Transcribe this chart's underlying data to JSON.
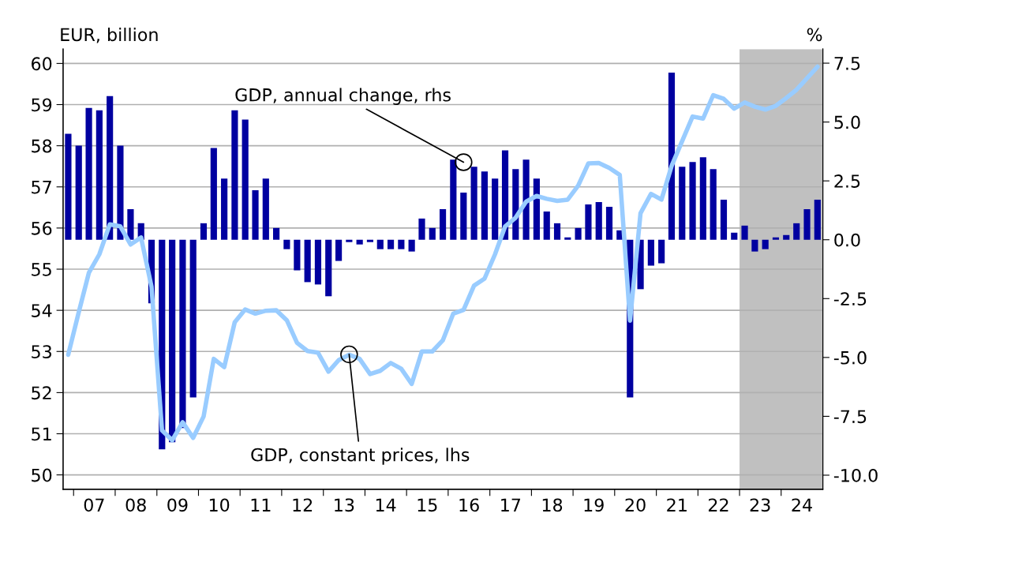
{
  "chart_data": {
    "type": "bar",
    "x": [
      "2006-11-15",
      "2007-02-15",
      "2007-05-15",
      "2007-08-15",
      "2007-11-15",
      "2008-02-15",
      "2008-05-15",
      "2008-08-15",
      "2008-11-15",
      "2009-02-15",
      "2009-05-15",
      "2009-08-15",
      "2009-11-15",
      "2010-02-15",
      "2010-05-15",
      "2010-08-15",
      "2010-11-15",
      "2011-02-15",
      "2011-05-15",
      "2011-08-15",
      "2011-11-15",
      "2012-02-15",
      "2012-05-15",
      "2012-08-15",
      "2012-11-15",
      "2013-02-15",
      "2013-05-15",
      "2013-08-15",
      "2013-11-15",
      "2014-02-15",
      "2014-05-15",
      "2014-08-15",
      "2014-11-15",
      "2015-02-15",
      "2015-05-15",
      "2015-08-15",
      "2015-11-15",
      "2016-02-15",
      "2016-05-15",
      "2016-08-15",
      "2016-11-15",
      "2017-02-15",
      "2017-05-15",
      "2017-08-15",
      "2017-11-15",
      "2018-02-15",
      "2018-05-15",
      "2018-08-15",
      "2018-11-15",
      "2019-02-15",
      "2019-05-15",
      "2019-08-15",
      "2019-11-15",
      "2020-02-15",
      "2020-05-15",
      "2020-08-15",
      "2020-11-15",
      "2021-02-15",
      "2021-05-15",
      "2021-08-15",
      "2021-11-15",
      "2022-02-15",
      "2022-05-15",
      "2022-08-15",
      "2022-11-15",
      "2023-02-15",
      "2023-05-15",
      "2023-08-15",
      "2023-11-15",
      "2024-02-15",
      "2024-05-15",
      "2024-08-15",
      "2024-11-15"
    ],
    "series": [
      {
        "axis": "y2",
        "color": "#0000a0",
        "values": [
          4.5,
          4.0,
          5.6,
          5.5,
          6.1,
          4.0,
          1.3,
          0.7,
          -2.7,
          -8.9,
          -8.6,
          -8.0,
          -6.7,
          0.7,
          3.9,
          2.6,
          5.5,
          5.1,
          2.1,
          2.6,
          0.5,
          -0.4,
          -1.3,
          -1.8,
          -1.9,
          -2.4,
          -0.9,
          -0.1,
          -0.2,
          -0.1,
          -0.4,
          -0.4,
          -0.4,
          -0.5,
          0.9,
          0.5,
          1.3,
          3.4,
          2.0,
          3.1,
          2.9,
          2.6,
          3.8,
          3.0,
          3.4,
          2.6,
          1.2,
          0.7,
          0.1,
          0.5,
          1.5,
          1.6,
          1.4,
          0.4,
          -6.7,
          -2.1,
          -1.1,
          -1.0,
          7.1,
          3.1,
          3.3,
          3.5,
          3.0,
          1.7,
          0.3,
          0.6,
          -0.5,
          -0.4,
          0.1,
          0.2,
          0.7,
          1.3,
          1.7
        ]
      },
      {
        "type": "line",
        "color": "#99ccff",
        "values": [
          52.92,
          53.95,
          54.91,
          55.36,
          56.09,
          56.04,
          55.6,
          55.77,
          54.57,
          51.08,
          50.84,
          51.28,
          50.9,
          51.42,
          52.82,
          52.62,
          53.71,
          54.02,
          53.92,
          53.99,
          54.0,
          53.76,
          53.21,
          53.01,
          52.97,
          52.51,
          52.79,
          52.92,
          52.82,
          52.45,
          52.53,
          52.72,
          52.58,
          52.21,
          53.0,
          53.0,
          53.27,
          53.92,
          54.01,
          54.6,
          54.77,
          55.36,
          56.04,
          56.25,
          56.64,
          56.78,
          56.71,
          56.66,
          56.69,
          57.03,
          57.57,
          57.58,
          57.46,
          57.29,
          53.75,
          56.36,
          56.83,
          56.69,
          57.51,
          58.11,
          58.71,
          58.66,
          59.23,
          59.14,
          58.9,
          59.05,
          58.95,
          58.88,
          58.97,
          59.16,
          59.36,
          59.64,
          59.92
        ]
      }
    ],
    "ylabel": "EUR, billion",
    "y2label": "%",
    "xlim": [
      "2006-10-01",
      "2025-01-01"
    ],
    "xticks": [
      {
        "value": "2007-01-01",
        "label": null
      },
      {
        "value": "2008-01-01",
        "label": null
      },
      {
        "value": "2009-01-01",
        "label": null
      },
      {
        "value": "2010-01-01",
        "label": null
      },
      {
        "value": "2011-01-01",
        "label": null
      },
      {
        "value": "2012-01-01",
        "label": null
      },
      {
        "value": "2013-01-01",
        "label": null
      },
      {
        "value": "2014-01-01",
        "label": null
      },
      {
        "value": "2015-01-01",
        "label": null
      },
      {
        "value": "2016-01-01",
        "label": null
      },
      {
        "value": "2017-01-01",
        "label": null
      },
      {
        "value": "2018-01-01",
        "label": null
      },
      {
        "value": "2019-01-01",
        "label": null
      },
      {
        "value": "2020-01-01",
        "label": null
      },
      {
        "value": "2021-01-01",
        "label": null
      },
      {
        "value": "2022-01-01",
        "label": null
      },
      {
        "value": "2023-01-01",
        "label": null
      },
      {
        "value": "2024-01-01",
        "label": null
      },
      {
        "value": "2007-07-01",
        "label": "07"
      },
      {
        "value": "2008-07-01",
        "label": "08"
      },
      {
        "value": "2009-07-01",
        "label": "09"
      },
      {
        "value": "2010-07-01",
        "label": "10"
      },
      {
        "value": "2011-07-01",
        "label": "11"
      },
      {
        "value": "2012-07-01",
        "label": "12"
      },
      {
        "value": "2013-07-01",
        "label": "13"
      },
      {
        "value": "2014-07-01",
        "label": "14"
      },
      {
        "value": "2015-07-01",
        "label": "15"
      },
      {
        "value": "2016-07-01",
        "label": "16"
      },
      {
        "value": "2017-07-01",
        "label": "17"
      },
      {
        "value": "2018-07-01",
        "label": "18"
      },
      {
        "value": "2019-07-01",
        "label": "19"
      },
      {
        "value": "2020-07-01",
        "label": "20"
      },
      {
        "value": "2021-07-01",
        "label": "21"
      },
      {
        "value": "2022-07-01",
        "label": "22"
      },
      {
        "value": "2023-07-01",
        "label": "23"
      },
      {
        "value": "2024-07-01",
        "label": "24"
      }
    ],
    "ylim": [
      49.65,
      60.35
    ],
    "yticks": [
      50,
      51,
      52,
      53,
      54,
      55,
      56,
      57,
      58,
      59,
      60
    ],
    "y2lim": [
      -10.6,
      8.1
    ],
    "y2ticks": [
      {
        "value": 7.5,
        "label": "7.5"
      },
      {
        "value": 5,
        "label": "5.0"
      },
      {
        "value": 2.5,
        "label": "2.5"
      },
      {
        "value": 0,
        "label": "0.0"
      },
      {
        "value": -2.5,
        "label": "-2.5"
      },
      {
        "value": -5,
        "label": "-5.0"
      },
      {
        "value": -7.5,
        "label": "-7.5"
      },
      {
        "value": -10,
        "label": "-10.0"
      }
    ],
    "bands": [
      {
        "axis": "x",
        "from": "2023-01-01",
        "to": "2025-01-01",
        "color": "#c0c0c0"
      }
    ],
    "annotations": [
      {
        "text": "GDP, annual change, rhs",
        "x": "2016-05-15",
        "y": 57.6
      },
      {
        "text": "GDP, constant prices, lhs",
        "x": "2013-08-15",
        "y": 52.93
      }
    ],
    "grid": "y",
    "line_style": "solid",
    "marker": "none"
  }
}
